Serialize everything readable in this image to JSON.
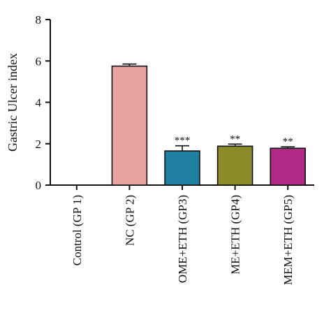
{
  "chart_data": {
    "type": "bar",
    "ylabel": "Gastric Ulcer index",
    "xlabel": "",
    "ylim": [
      0,
      8
    ],
    "yticks": [
      0,
      2,
      4,
      6,
      8
    ],
    "grid": false,
    "categories": [
      "Control (GP 1)",
      "NC (GP 2)",
      "OME+ETH (GP3)",
      "ME+ETH (GP4)",
      "MEM+ETH (GP5)"
    ],
    "values": [
      0,
      5.75,
      1.65,
      1.88,
      1.78
    ],
    "errors": [
      0,
      0.1,
      0.25,
      0.1,
      0.07
    ],
    "significance": [
      "",
      "",
      "***",
      "**",
      "**"
    ],
    "colors": [
      "#ffffff",
      "#e8a3a0",
      "#1e7fa0",
      "#8b8b2a",
      "#b02a86"
    ]
  }
}
